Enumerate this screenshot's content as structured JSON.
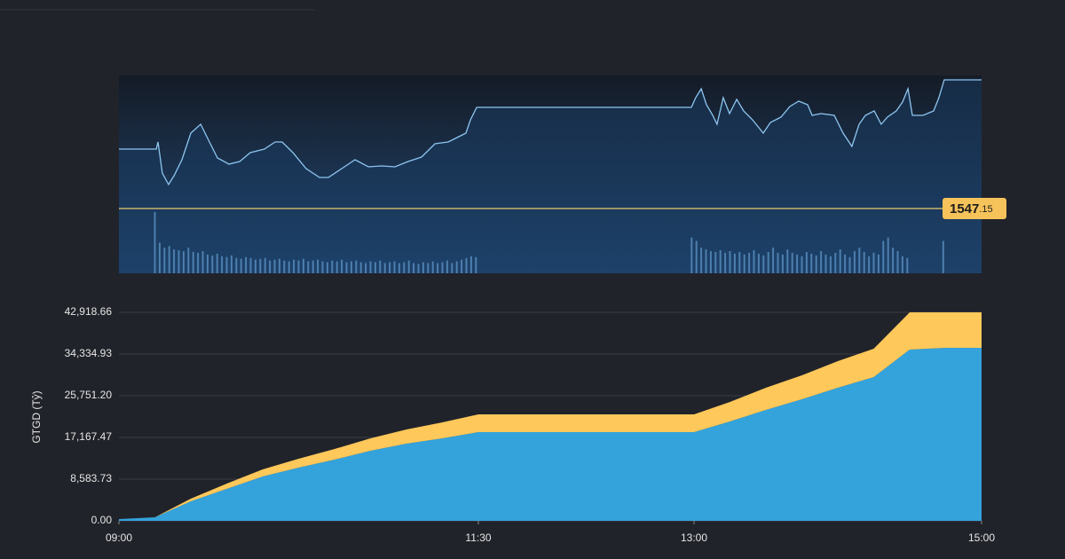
{
  "chart_data": [
    {
      "type": "line",
      "xlim": [
        540,
        900
      ],
      "ylim": [
        1533.76,
        1574.66
      ],
      "x": [
        540,
        555.6,
        556.3,
        558.1,
        560.7,
        563.0,
        566.3,
        570.0,
        574.1,
        577.4,
        581.1,
        585.9,
        590.4,
        594.8,
        600.7,
        605.2,
        608.1,
        612.6,
        618.1,
        623.7,
        627.4,
        633.0,
        638.5,
        644.1,
        649.6,
        655.2,
        660.7,
        666.3,
        671.9,
        677.4,
        681.1,
        684.8,
        686.7,
        689.3,
        778.9,
        780.7,
        783.0,
        785.2,
        787.8,
        789.6,
        792.2,
        794.8,
        797.8,
        800.7,
        804.4,
        808.9,
        811.9,
        816.3,
        820.0,
        823.7,
        827.4,
        829.3,
        833.0,
        838.5,
        842.2,
        845.9,
        848.9,
        851.5,
        855.2,
        858.1,
        860.7,
        864.4,
        867.0,
        869.3,
        871.1,
        875.6,
        880.0,
        882.2,
        884.4,
        900
      ],
      "series": [
        {
          "color": "#8ec5f0",
          "values": [
            1559.44,
            1559.44,
            1560.91,
            1554.49,
            1552.1,
            1553.94,
            1557.24,
            1562.74,
            1564.57,
            1561.27,
            1557.6,
            1556.32,
            1556.87,
            1558.7,
            1559.44,
            1560.91,
            1560.91,
            1558.7,
            1555.4,
            1553.57,
            1553.57,
            1555.4,
            1557.24,
            1555.77,
            1555.95,
            1555.77,
            1556.87,
            1557.79,
            1560.54,
            1560.91,
            1561.82,
            1562.74,
            1565.49,
            1568.06,
            1568.06,
            1570.08,
            1571.91,
            1568.61,
            1566.41,
            1564.57,
            1570.08,
            1566.77,
            1569.71,
            1567.32,
            1565.49,
            1562.74,
            1564.94,
            1566.04,
            1568.24,
            1569.34,
            1568.61,
            1566.41,
            1566.77,
            1566.41,
            1562.74,
            1559.99,
            1564.57,
            1566.41,
            1567.32,
            1564.57,
            1566.04,
            1567.32,
            1569.16,
            1571.91,
            1566.41,
            1566.41,
            1567.32,
            1570.08,
            1573.74,
            1573.74
          ]
        }
      ],
      "reference": {
        "value": 1547.15,
        "label": "1547.15",
        "color": "#c9b26a"
      },
      "volume": {
        "color": "#4d7fae",
        "ylim": [
          0,
          75
        ],
        "x": [
          555,
          557,
          559,
          561,
          563,
          565,
          567,
          569,
          571,
          573,
          575,
          577,
          579,
          581,
          583,
          585,
          587,
          589,
          591,
          593,
          595,
          597,
          599,
          601,
          603,
          605,
          607,
          609,
          611,
          613,
          615,
          617,
          619,
          621,
          623,
          625,
          627,
          629,
          631,
          633,
          635,
          637,
          639,
          641,
          643,
          645,
          647,
          649,
          651,
          653,
          655,
          657,
          659,
          661,
          663,
          665,
          667,
          669,
          671,
          673,
          675,
          677,
          679,
          681,
          683,
          685,
          687,
          689,
          779,
          781,
          783,
          785,
          787,
          789,
          791,
          793,
          795,
          797,
          799,
          801,
          803,
          805,
          807,
          809,
          811,
          813,
          815,
          817,
          819,
          821,
          823,
          825,
          827,
          829,
          831,
          833,
          835,
          837,
          839,
          841,
          843,
          845,
          847,
          849,
          851,
          853,
          855,
          857,
          859,
          861,
          863,
          865,
          867,
          869,
          884
        ],
        "values": [
          72,
          36,
          30,
          32,
          28,
          27,
          26,
          30,
          25,
          24,
          26,
          22,
          21,
          23,
          20,
          19,
          21,
          18,
          17,
          19,
          18,
          16,
          17,
          18,
          15,
          16,
          17,
          15,
          14,
          16,
          15,
          17,
          14,
          15,
          16,
          14,
          13,
          15,
          14,
          16,
          13,
          14,
          15,
          13,
          12,
          14,
          13,
          15,
          12,
          13,
          14,
          12,
          13,
          15,
          12,
          11,
          13,
          12,
          14,
          12,
          13,
          15,
          12,
          14,
          16,
          18,
          20,
          19,
          42,
          38,
          30,
          28,
          26,
          25,
          27,
          24,
          26,
          23,
          25,
          22,
          24,
          27,
          23,
          21,
          25,
          30,
          24,
          22,
          28,
          24,
          22,
          20,
          25,
          23,
          21,
          26,
          22,
          20,
          24,
          28,
          22,
          19,
          26,
          30,
          25,
          20,
          24,
          22,
          38,
          42,
          30,
          26,
          20,
          18,
          38
        ]
      }
    },
    {
      "type": "area",
      "y_label": "GTGD (Tỷ)",
      "xlim": [
        540,
        900
      ],
      "xticks": [
        {
          "value": 540,
          "label": "09:00"
        },
        {
          "value": 690,
          "label": "11:30"
        },
        {
          "value": 780,
          "label": "13:00"
        },
        {
          "value": 900,
          "label": "15:00"
        }
      ],
      "ylim": [
        0,
        42918.66
      ],
      "yticks": [
        {
          "value": 0,
          "label": "0.00"
        },
        {
          "value": 8583.73,
          "label": "8,583.73"
        },
        {
          "value": 17167.47,
          "label": "17,167.47"
        },
        {
          "value": 25751.2,
          "label": "25,751.20"
        },
        {
          "value": 34334.93,
          "label": "34,334.93"
        },
        {
          "value": 42918.66,
          "label": "42,918.66"
        }
      ],
      "grid": true,
      "stacked": true,
      "x": [
        540,
        555,
        570,
        585,
        600,
        615,
        630,
        645,
        660,
        675,
        690,
        700,
        720,
        750,
        780,
        795,
        810,
        825,
        840,
        855,
        870,
        885,
        900
      ],
      "series": [
        {
          "color": "#34a3dc",
          "values": [
            365,
            730,
            4018,
            6575,
            9132,
            10958,
            12602,
            14428,
            15889,
            16985,
            18263,
            18263,
            18263,
            18263,
            18263,
            20455,
            22829,
            25020,
            27395,
            29586,
            35248,
            35613,
            35613
          ]
        },
        {
          "color": "#fec85a",
          "values": [
            0,
            0,
            548,
            1096,
            1461,
            1826,
            2192,
            2557,
            2922,
            3287,
            3653,
            3653,
            3653,
            3653,
            3653,
            4018,
            4566,
            4931,
            5479,
            5844,
            7671,
            7305,
            7305
          ]
        }
      ]
    }
  ]
}
